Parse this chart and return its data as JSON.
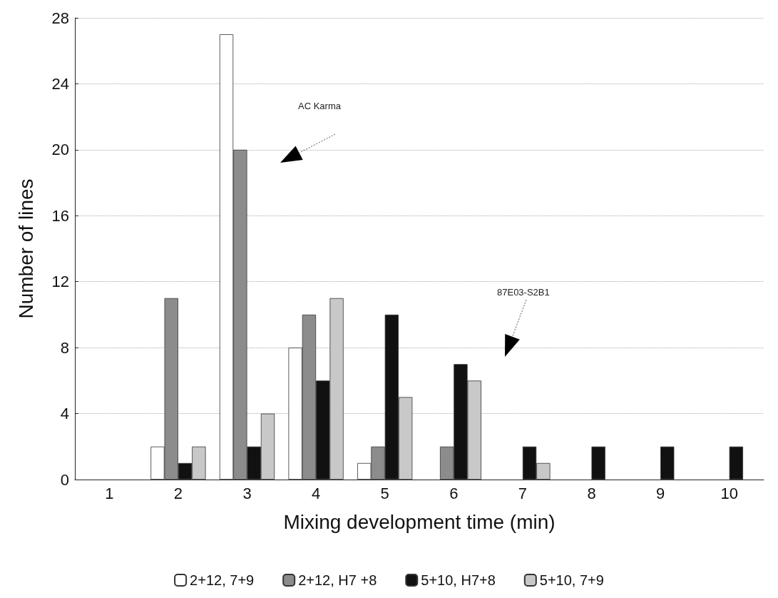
{
  "chart_data": {
    "type": "bar",
    "xlabel": "Mixing development time (min)",
    "ylabel": "Number of lines",
    "categories": [
      "1",
      "2",
      "3",
      "4",
      "5",
      "6",
      "7",
      "8",
      "9",
      "10"
    ],
    "series": [
      {
        "name": "2+12, 7+9",
        "color": "#ffffff",
        "values": [
          0,
          2,
          27,
          8,
          1,
          0,
          0,
          0,
          0,
          0
        ]
      },
      {
        "name": "2+12, H7 +8",
        "color": "#8c8c8c",
        "values": [
          0,
          11,
          20,
          10,
          2,
          2,
          0,
          0,
          0,
          0
        ]
      },
      {
        "name": "5+10, H7+8",
        "color": "#111111",
        "values": [
          0,
          1,
          2,
          6,
          10,
          7,
          2,
          2,
          2,
          2
        ]
      },
      {
        "name": "5+10, 7+9",
        "color": "#c8c8c8",
        "values": [
          0,
          2,
          4,
          11,
          5,
          6,
          1,
          0,
          0,
          0
        ]
      }
    ],
    "ylim": [
      0,
      28
    ],
    "yticks": [
      0,
      4,
      8,
      12,
      16,
      20,
      24,
      28
    ],
    "grid": "y",
    "legend": "bottom",
    "annotations": [
      "AC Karma",
      "87E03-S2B1"
    ]
  }
}
